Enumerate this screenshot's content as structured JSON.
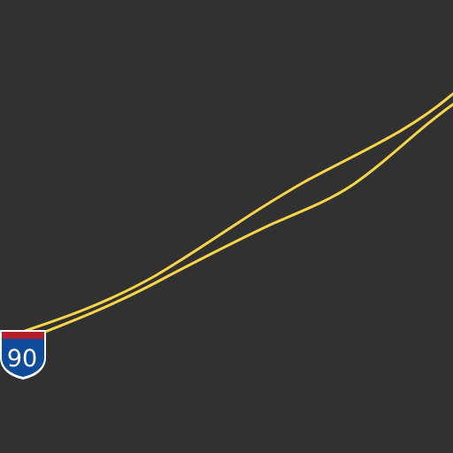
{
  "map": {
    "background_color": "#313131",
    "road_color": "#f7d547",
    "roads": [
      {
        "name": "interstate-90-carriageway-north"
      },
      {
        "name": "interstate-90-carriageway-south"
      }
    ]
  },
  "shield": {
    "type": "interstate",
    "route_number": "90",
    "top_band_color": "#b31f2a",
    "body_color": "#0e4b9a",
    "border_color": "#ffffff",
    "text_color": "#ffffff",
    "icon": "interstate-shield-icon"
  }
}
